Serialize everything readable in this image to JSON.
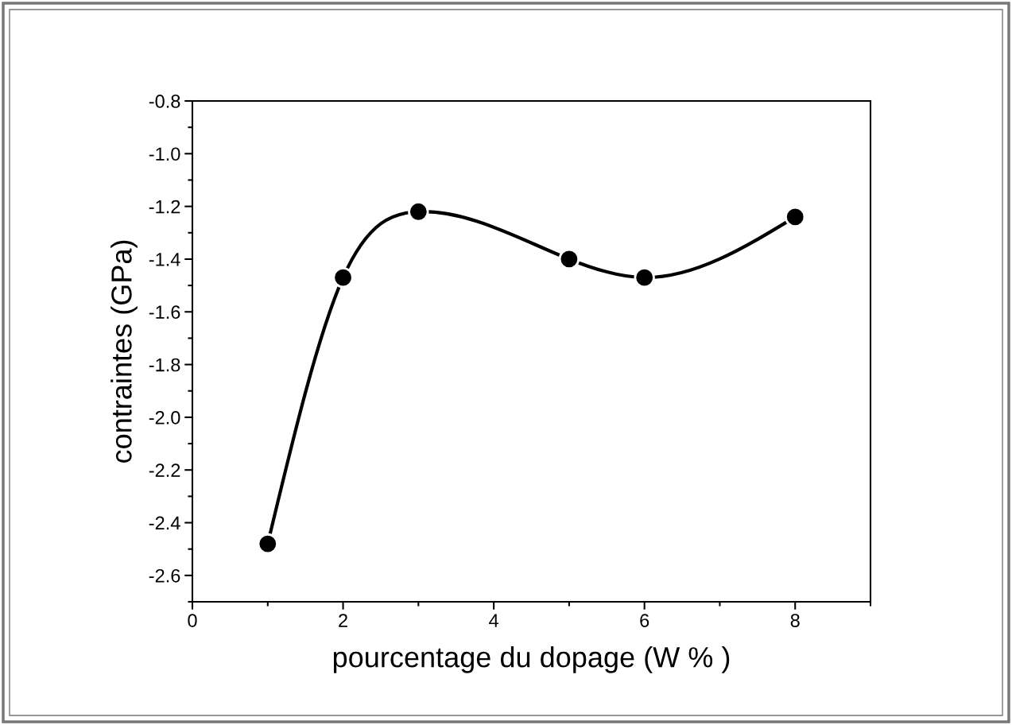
{
  "chart_data": {
    "type": "line",
    "xlabel": "pourcentage du dopage (W % )",
    "ylabel": "contraintes (GPa)",
    "x": [
      1,
      2,
      3,
      5,
      6,
      8
    ],
    "series": [
      {
        "color": "#000000",
        "values": [
          -2.48,
          -1.47,
          -1.22,
          -1.4,
          -1.47,
          -1.24
        ]
      }
    ],
    "marker": "circle",
    "line_style": "solid",
    "grid": false,
    "legend": false,
    "xlim": [
      0,
      9
    ],
    "xticks": [
      0,
      {
        "value": 1,
        "label": null
      },
      2,
      {
        "value": 3,
        "label": null
      },
      4,
      {
        "value": 5,
        "label": null
      },
      6,
      {
        "value": 7,
        "label": null
      },
      8,
      {
        "value": 9,
        "label": null
      }
    ],
    "ylim": [
      -2.7,
      -0.8
    ],
    "yticks": [
      {
        "value": -2.7,
        "label": null
      },
      -2.6,
      {
        "value": -2.5,
        "label": null
      },
      -2.4,
      {
        "value": -2.3,
        "label": null
      },
      -2.2,
      {
        "value": -2.1,
        "label": null
      },
      {
        "value": -2.0,
        "label": "-2.0"
      },
      {
        "value": -1.9,
        "label": null
      },
      -1.8,
      {
        "value": -1.7,
        "label": null
      },
      -1.6,
      {
        "value": -1.5,
        "label": null
      },
      -1.4,
      {
        "value": -1.3,
        "label": null
      },
      -1.2,
      {
        "value": -1.1,
        "label": null
      },
      {
        "value": -1.0,
        "label": "-1.0"
      },
      {
        "value": -0.9,
        "label": null
      },
      -0.8
    ]
  }
}
